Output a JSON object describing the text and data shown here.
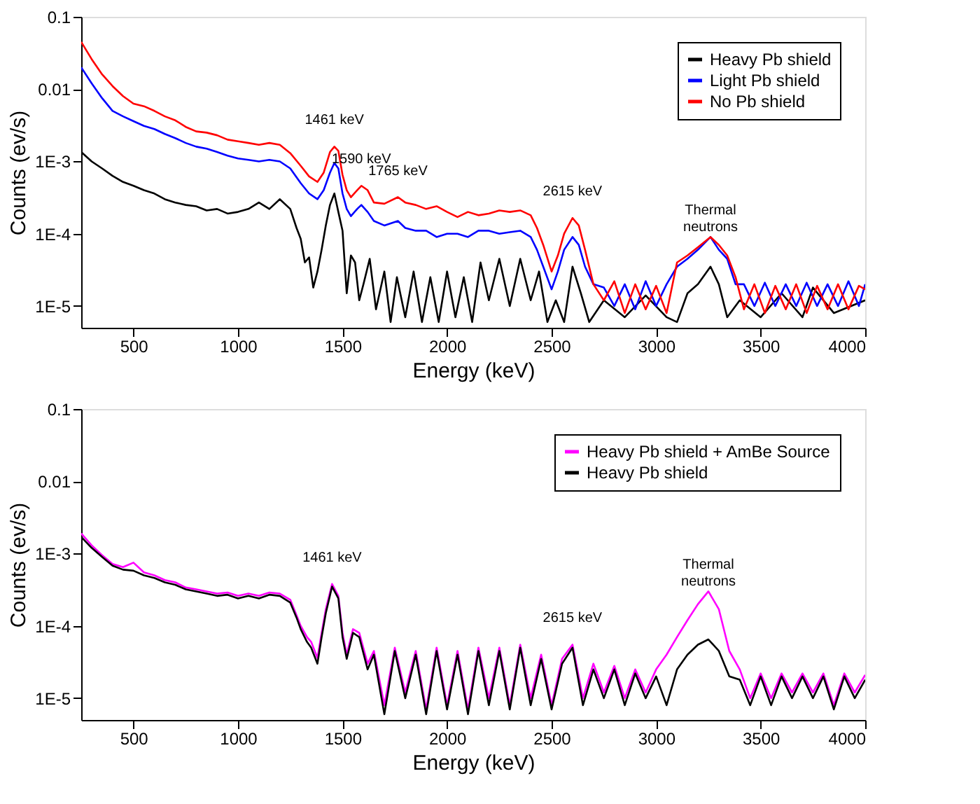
{
  "chart_data": [
    {
      "type": "line",
      "xlabel": "Energy (keV)",
      "ylabel": "Counts (ev/s)",
      "log": "y",
      "grid": false,
      "legend": "top right",
      "xlim": [
        250,
        4000
      ],
      "xticks": [
        500,
        1000,
        1500,
        2000,
        2500,
        3000,
        3500,
        4000
      ],
      "ylim": [
        5e-06,
        0.1
      ],
      "yticks": [
        {
          "value": 1e-05,
          "label": "1E-5"
        },
        {
          "value": 0.0001,
          "label": "1E-4"
        },
        {
          "value": 0.001,
          "label": "1E-3"
        },
        {
          "value": 0.01,
          "label": "0.01"
        },
        {
          "value": 0.1,
          "label": "0.1"
        }
      ],
      "series": [
        {
          "name": "Heavy Pb shield",
          "color": "#000000",
          "x": [
            250,
            300,
            350,
            400,
            450,
            500,
            550,
            600,
            650,
            700,
            750,
            800,
            850,
            900,
            950,
            1000,
            1050,
            1100,
            1150,
            1200,
            1250,
            1280,
            1300,
            1320,
            1340,
            1360,
            1380,
            1400,
            1420,
            1440,
            1461,
            1480,
            1500,
            1520,
            1540,
            1560,
            1580,
            1600,
            1630,
            1660,
            1700,
            1730,
            1760,
            1800,
            1840,
            1880,
            1920,
            1960,
            2000,
            2040,
            2080,
            2120,
            2160,
            2200,
            2250,
            2300,
            2350,
            2400,
            2440,
            2480,
            2520,
            2560,
            2600,
            2640,
            2680,
            2750,
            2850,
            2950,
            3050,
            3100,
            3150,
            3200,
            3260,
            3300,
            3340,
            3400,
            3500,
            3600,
            3700,
            3750,
            3850,
            4000
          ],
          "values": [
            0.00135,
            0.001,
            0.0008,
            0.00063,
            0.00052,
            0.00046,
            0.0004,
            0.00036,
            0.0003,
            0.00027,
            0.00025,
            0.00024,
            0.00021,
            0.00022,
            0.00019,
            0.0002,
            0.00022,
            0.00027,
            0.00022,
            0.0003,
            0.00022,
            0.00012,
            8.5e-05,
            4e-05,
            4.7e-05,
            1.8e-05,
            3e-05,
            6e-05,
            0.00013,
            0.00025,
            0.00036,
            0.0002,
            0.00011,
            1.5e-05,
            5e-05,
            4e-05,
            1.2e-05,
            2e-05,
            4.5e-05,
            9e-06,
            3e-05,
            6e-06,
            2.5e-05,
            7e-06,
            3e-05,
            6e-06,
            2.5e-05,
            6e-06,
            3e-05,
            7e-06,
            2.5e-05,
            6e-06,
            4e-05,
            1.2e-05,
            4.5e-05,
            1e-05,
            4.5e-05,
            1.2e-05,
            3e-05,
            6e-06,
            1.2e-05,
            6e-06,
            3.5e-05,
            1.5e-05,
            6e-06,
            1.2e-05,
            7e-06,
            1.4e-05,
            7e-06,
            6e-06,
            1.5e-05,
            2e-05,
            3.5e-05,
            2e-05,
            7e-06,
            1.2e-05,
            7e-06,
            1.5e-05,
            7e-06,
            1.8e-05,
            8e-06,
            1.2e-05
          ]
        },
        {
          "name": "Light Pb shield",
          "color": "#0000ff",
          "x": [
            250,
            300,
            350,
            400,
            450,
            500,
            550,
            600,
            650,
            700,
            750,
            800,
            850,
            900,
            950,
            1000,
            1050,
            1100,
            1150,
            1200,
            1250,
            1300,
            1340,
            1380,
            1410,
            1440,
            1461,
            1480,
            1500,
            1520,
            1540,
            1570,
            1590,
            1620,
            1650,
            1700,
            1765,
            1800,
            1850,
            1900,
            1950,
            2000,
            2050,
            2100,
            2150,
            2200,
            2250,
            2300,
            2350,
            2400,
            2430,
            2460,
            2500,
            2530,
            2560,
            2600,
            2630,
            2660,
            2700,
            2750,
            2800,
            2850,
            2900,
            2950,
            3000,
            3050,
            3100,
            3150,
            3200,
            3260,
            3300,
            3340,
            3380,
            3420,
            3470,
            3520,
            3570,
            3620,
            3670,
            3720,
            3770,
            3820,
            3870,
            3920,
            3970,
            4000
          ],
          "values": [
            0.02,
            0.012,
            0.0075,
            0.005,
            0.0042,
            0.0036,
            0.0031,
            0.0028,
            0.0024,
            0.0021,
            0.0018,
            0.0016,
            0.0015,
            0.00135,
            0.0012,
            0.0011,
            0.00105,
            0.001,
            0.00105,
            0.001,
            0.0008,
            0.0005,
            0.00036,
            0.0003,
            0.0004,
            0.0007,
            0.00095,
            0.0008,
            0.00036,
            0.00022,
            0.000175,
            0.00022,
            0.00025,
            0.0002,
            0.00015,
            0.00013,
            0.00015,
            0.00012,
            0.00011,
            0.00011,
            9e-05,
            0.0001,
            0.0001,
            9e-05,
            0.00011,
            0.00011,
            0.0001,
            0.000105,
            0.00011,
            9e-05,
            6e-05,
            3.5e-05,
            1.7e-05,
            3e-05,
            6e-05,
            9e-05,
            7e-05,
            3.5e-05,
            2e-05,
            1.8e-05,
            1e-05,
            2e-05,
            9e-06,
            2.2e-05,
            1e-05,
            2e-05,
            3.5e-05,
            4.5e-05,
            6e-05,
            9e-05,
            6e-05,
            4.5e-05,
            2e-05,
            2e-05,
            1e-05,
            2.1e-05,
            1e-05,
            2e-05,
            1e-05,
            2.1e-05,
            1e-05,
            2e-05,
            1e-05,
            2.2e-05,
            1e-05,
            2e-05
          ]
        },
        {
          "name": "No Pb shield",
          "color": "#ff0000",
          "x": [
            250,
            300,
            350,
            400,
            450,
            500,
            550,
            600,
            650,
            700,
            750,
            800,
            850,
            900,
            950,
            1000,
            1050,
            1100,
            1150,
            1200,
            1250,
            1300,
            1340,
            1380,
            1410,
            1440,
            1461,
            1480,
            1500,
            1520,
            1540,
            1570,
            1590,
            1620,
            1650,
            1700,
            1765,
            1800,
            1850,
            1900,
            1950,
            2000,
            2050,
            2100,
            2150,
            2200,
            2250,
            2300,
            2350,
            2400,
            2430,
            2460,
            2500,
            2530,
            2560,
            2600,
            2630,
            2660,
            2700,
            2750,
            2800,
            2850,
            2900,
            2950,
            3000,
            3050,
            3100,
            3150,
            3200,
            3260,
            3300,
            3340,
            3380,
            3420,
            3470,
            3520,
            3570,
            3620,
            3670,
            3720,
            3770,
            3820,
            3870,
            3920,
            3970,
            4000
          ],
          "values": [
            0.045,
            0.026,
            0.016,
            0.011,
            0.008,
            0.0063,
            0.0058,
            0.005,
            0.0042,
            0.0037,
            0.003,
            0.0026,
            0.0025,
            0.0023,
            0.002,
            0.0019,
            0.0018,
            0.0017,
            0.0018,
            0.0017,
            0.0013,
            0.00087,
            0.00062,
            0.00052,
            0.0007,
            0.00135,
            0.0016,
            0.0014,
            0.00065,
            0.0004,
            0.00032,
            0.0004,
            0.00046,
            0.0004,
            0.00027,
            0.00026,
            0.00032,
            0.00027,
            0.00025,
            0.00022,
            0.00024,
            0.0002,
            0.00017,
            0.0002,
            0.00018,
            0.00019,
            0.00021,
            0.0002,
            0.00021,
            0.00018,
            0.00012,
            7e-05,
            3e-05,
            5e-05,
            0.0001,
            0.000165,
            0.00013,
            6e-05,
            2e-05,
            1.2e-05,
            2.2e-05,
            8e-06,
            2e-05,
            9e-06,
            1.9e-05,
            8e-06,
            4e-05,
            5e-05,
            6.5e-05,
            9e-05,
            7e-05,
            5e-05,
            2.5e-05,
            9e-06,
            2e-05,
            8e-06,
            1.9e-05,
            9e-06,
            2e-05,
            8e-06,
            1.9e-05,
            9e-06,
            2e-05,
            9e-06,
            1.9e-05,
            1.7e-05
          ]
        }
      ],
      "annotations": [
        {
          "text": "1461 keV",
          "x": 1461,
          "y": 0.0016
        },
        {
          "text": "1590 keV",
          "x": 1590,
          "y": 0.00046
        },
        {
          "text": "1765 keV",
          "x": 1765,
          "y": 0.00032
        },
        {
          "text": "2615 keV",
          "x": 2600,
          "y": 0.000165
        },
        {
          "text": "Thermal\nneutrons",
          "x": 3260,
          "y": 9e-05
        }
      ]
    },
    {
      "type": "line",
      "xlabel": "Energy (keV)",
      "ylabel": "Counts (ev/s)",
      "log": "y",
      "grid": false,
      "legend": "top right",
      "xlim": [
        250,
        4000
      ],
      "xticks": [
        500,
        1000,
        1500,
        2000,
        2500,
        3000,
        3500,
        4000
      ],
      "ylim": [
        5e-06,
        0.1
      ],
      "yticks": [
        {
          "value": 1e-05,
          "label": "1E-5"
        },
        {
          "value": 0.0001,
          "label": "1E-4"
        },
        {
          "value": 0.001,
          "label": "1E-3"
        },
        {
          "value": 0.01,
          "label": "0.01"
        },
        {
          "value": 0.1,
          "label": "0.1"
        }
      ],
      "series": [
        {
          "name": "Heavy Pb shield + AmBe Source",
          "color": "#ff00ff",
          "x": [
            250,
            300,
            350,
            400,
            450,
            500,
            550,
            600,
            650,
            700,
            750,
            800,
            850,
            900,
            950,
            1000,
            1050,
            1100,
            1150,
            1200,
            1250,
            1280,
            1300,
            1330,
            1350,
            1380,
            1400,
            1420,
            1450,
            1480,
            1500,
            1520,
            1550,
            1580,
            1620,
            1650,
            1700,
            1750,
            1800,
            1850,
            1900,
            1950,
            2000,
            2050,
            2100,
            2150,
            2200,
            2250,
            2300,
            2350,
            2400,
            2450,
            2500,
            2550,
            2600,
            2650,
            2700,
            2750,
            2800,
            2850,
            2900,
            2950,
            3000,
            3050,
            3100,
            3150,
            3200,
            3250,
            3300,
            3350,
            3400,
            3450,
            3500,
            3550,
            3600,
            3650,
            3700,
            3750,
            3800,
            3850,
            3900,
            3950,
            4000
          ],
          "values": [
            0.0019,
            0.0013,
            0.00095,
            0.00072,
            0.00065,
            0.00075,
            0.00055,
            0.0005,
            0.00043,
            0.0004,
            0.00034,
            0.00032,
            0.0003,
            0.00028,
            0.00029,
            0.00026,
            0.00028,
            0.00026,
            0.00029,
            0.00028,
            0.00023,
            0.00014,
            0.0001,
            7e-05,
            6e-05,
            3.6e-05,
            8e-05,
            0.00017,
            0.00038,
            0.00026,
            8e-05,
            4e-05,
            9e-05,
            8e-05,
            3e-05,
            4.5e-05,
            8e-06,
            5e-05,
            1.2e-05,
            4.5e-05,
            7e-06,
            5e-05,
            8e-06,
            4.5e-05,
            7e-06,
            5e-05,
            1e-05,
            5e-05,
            8e-06,
            5.5e-05,
            1e-05,
            4e-05,
            8e-06,
            3.5e-05,
            5.5e-05,
            1e-05,
            3e-05,
            1.2e-05,
            2.8e-05,
            1e-05,
            2.5e-05,
            1.2e-05,
            2.5e-05,
            4e-05,
            7e-05,
            0.00012,
            0.0002,
            0.0003,
            0.00017,
            4.5e-05,
            2.5e-05,
            1e-05,
            2.2e-05,
            1e-05,
            2.2e-05,
            1.2e-05,
            2.2e-05,
            1.2e-05,
            2.2e-05,
            8e-06,
            2.2e-05,
            1.2e-05,
            2.1e-05
          ]
        },
        {
          "name": "Heavy Pb shield",
          "color": "#000000",
          "x": [
            250,
            300,
            350,
            400,
            450,
            500,
            550,
            600,
            650,
            700,
            750,
            800,
            850,
            900,
            950,
            1000,
            1050,
            1100,
            1150,
            1200,
            1250,
            1280,
            1300,
            1330,
            1350,
            1380,
            1400,
            1420,
            1450,
            1480,
            1500,
            1520,
            1550,
            1580,
            1620,
            1650,
            1700,
            1750,
            1800,
            1850,
            1900,
            1950,
            2000,
            2050,
            2100,
            2150,
            2200,
            2250,
            2300,
            2350,
            2400,
            2450,
            2500,
            2550,
            2600,
            2650,
            2700,
            2750,
            2800,
            2850,
            2900,
            2950,
            3000,
            3050,
            3100,
            3150,
            3200,
            3250,
            3300,
            3350,
            3400,
            3450,
            3500,
            3550,
            3600,
            3650,
            3700,
            3750,
            3800,
            3850,
            3900,
            3950,
            4000
          ],
          "values": [
            0.0017,
            0.0012,
            0.0009,
            0.00068,
            0.0006,
            0.00058,
            0.0005,
            0.00046,
            0.0004,
            0.00037,
            0.00032,
            0.0003,
            0.00028,
            0.00026,
            0.00027,
            0.00024,
            0.00026,
            0.00024,
            0.00027,
            0.00026,
            0.00021,
            0.00013,
            9e-05,
            6e-05,
            5e-05,
            3e-05,
            7e-05,
            0.00015,
            0.00035,
            0.00024,
            7e-05,
            3.5e-05,
            8e-05,
            7e-05,
            2.5e-05,
            4e-05,
            6e-06,
            4.5e-05,
            1e-05,
            4e-05,
            6e-06,
            4.5e-05,
            7e-06,
            4e-05,
            6e-06,
            4.5e-05,
            8e-06,
            4.5e-05,
            7e-06,
            5e-05,
            8e-06,
            3.5e-05,
            7e-06,
            3e-05,
            5e-05,
            8e-06,
            2.5e-05,
            1e-05,
            2.5e-05,
            8e-06,
            2.2e-05,
            1e-05,
            2e-05,
            8e-06,
            2.5e-05,
            4e-05,
            5.5e-05,
            6.5e-05,
            4.5e-05,
            2e-05,
            1.8e-05,
            8e-06,
            2e-05,
            8e-06,
            2e-05,
            1e-05,
            2e-05,
            1e-05,
            2e-05,
            7e-06,
            2e-05,
            1e-05,
            1.8e-05
          ]
        }
      ],
      "annotations": [
        {
          "text": "1461 keV",
          "x": 1450,
          "y": 0.00038
        },
        {
          "text": "2615 keV",
          "x": 2600,
          "y": 5.5e-05
        },
        {
          "text": "Thermal\nneutrons",
          "x": 3250,
          "y": 0.0003
        }
      ]
    }
  ]
}
